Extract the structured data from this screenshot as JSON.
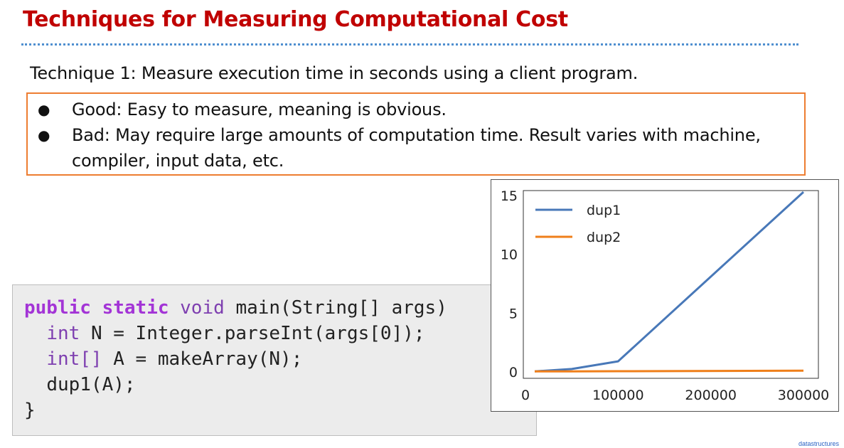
{
  "slide": {
    "title": "Techniques for Measuring Computational Cost",
    "technique": "Technique 1: Measure execution time in seconds using a client program.",
    "bullets": [
      {
        "symbol": "●",
        "text": "Good: Easy to measure, meaning is obvious."
      },
      {
        "symbol": "●",
        "text": "Bad: May require large amounts of computation time. Result varies with machine, compiler, input data, etc."
      }
    ],
    "footer": "datastructures"
  },
  "code": {
    "kw_public": "public",
    "kw_static": "static",
    "ty_void": "void",
    "sig_rest": "main(String[] args)",
    "ty_int": "int",
    "line2_rest": "N = Integer.parseInt(args[0]);",
    "ty_int_arr": "int[]",
    "line3_rest": "A = makeArray(N);",
    "line4": "dup1(A);",
    "line5": "}"
  },
  "colors": {
    "title": "#c00000",
    "box_border": "#ed7d31",
    "rule": "#4f8fd0",
    "keyword": "#a334d6",
    "code_bg": "#ececec"
  },
  "chart_data": {
    "type": "line",
    "title": "",
    "xlabel": "",
    "ylabel": "",
    "xlim": [
      0,
      300000
    ],
    "ylim": [
      0,
      15
    ],
    "x_ticks": [
      "0",
      "100000",
      "200000",
      "300000"
    ],
    "y_ticks": [
      "0",
      "5",
      "10",
      "15"
    ],
    "grid": false,
    "legend_position": "top-left",
    "series": [
      {
        "name": "dup1",
        "color": "#4878b8",
        "x": [
          10000,
          50000,
          100000,
          300000
        ],
        "y": [
          0.05,
          0.25,
          0.9,
          15.3
        ]
      },
      {
        "name": "dup2",
        "color": "#ef7f1a",
        "x": [
          10000,
          50000,
          100000,
          300000
        ],
        "y": [
          0.04,
          0.05,
          0.06,
          0.1
        ]
      }
    ]
  }
}
